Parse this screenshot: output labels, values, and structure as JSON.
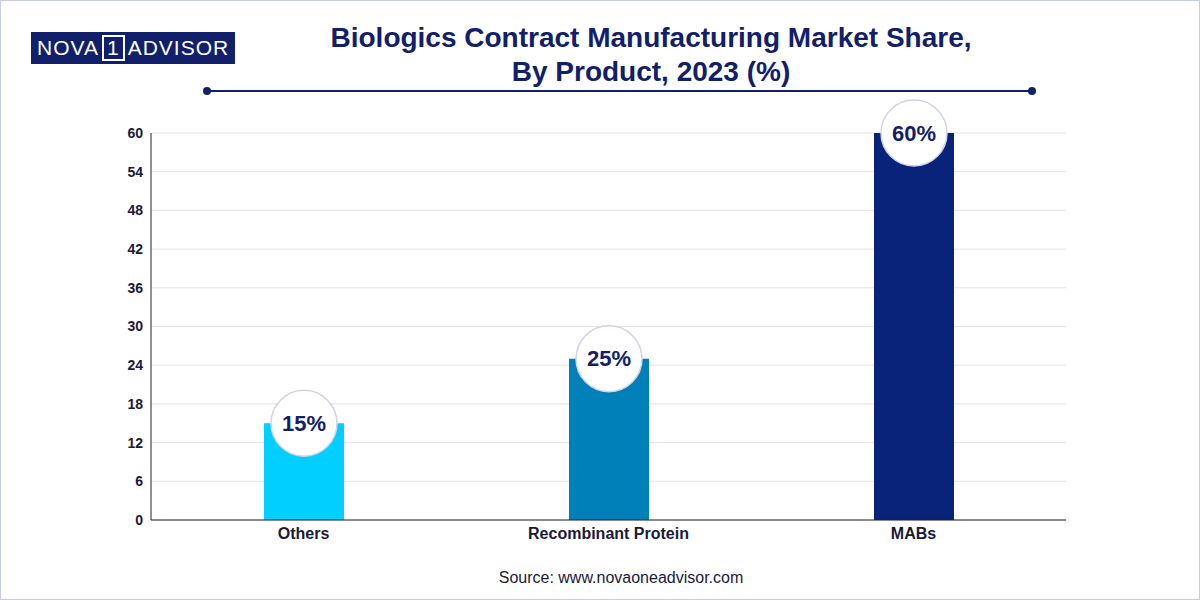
{
  "chart_data": {
    "type": "bar",
    "title": [
      "Biologics Contract Manufacturing Market Share,",
      "By Product, 2023 (%)"
    ],
    "logo": [
      "NOVA",
      "1",
      "ADVISOR"
    ],
    "source": "Source: www.novaoneadvisor.com",
    "categories": [
      "Others",
      "Recombinant Protein",
      "MABs"
    ],
    "values": [
      15,
      25,
      60
    ],
    "value_labels": [
      "15%",
      "25%",
      "60%"
    ],
    "colors": [
      "#00cfff",
      "#0080b8",
      "#0a237a"
    ],
    "ylim": [
      0,
      60
    ],
    "yticks": [
      0,
      6,
      12,
      18,
      24,
      30,
      36,
      42,
      48,
      54,
      60
    ],
    "grid": true,
    "data_labels": true
  }
}
